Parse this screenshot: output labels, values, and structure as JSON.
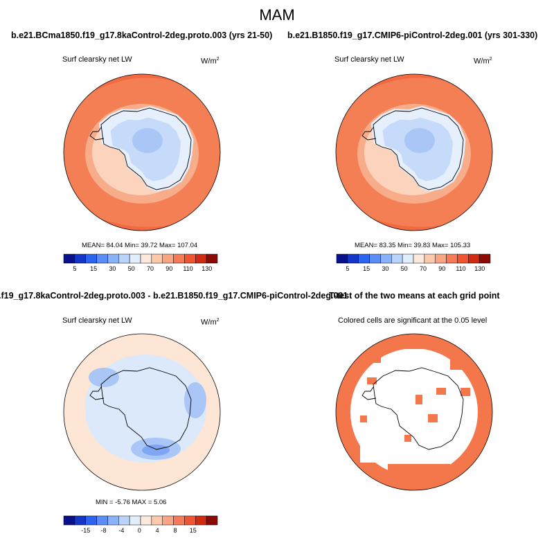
{
  "figure": {
    "title": "MAM"
  },
  "panels": [
    {
      "id": "p1",
      "title": "b.e21.BCma1850.f19_g17.8kaControl-2deg.proto.003 (yrs 21-50)",
      "subtitle": "Surf clearsky net LW",
      "units": "W/m",
      "units_sup": "2",
      "stats": "MEAN=  84.04  Min=  39.72  Max= 107.04"
    },
    {
      "id": "p2",
      "title": "b.e21.B1850.f19_g17.CMIP6-piControl-2deg.001 (yrs 301-330)",
      "subtitle": "Surf clearsky net LW",
      "units": "W/m",
      "units_sup": "2",
      "stats": "MEAN=  83.35  Min=  39.83  Max= 105.33"
    },
    {
      "id": "p3",
      "title": ".f19_g17.8kaControl-2deg.proto.003 - b.e21.B1850.f19_g17.CMIP6-piControl-2deg.001",
      "subtitle": "Surf clearsky net LW",
      "units": "W/m",
      "units_sup": "2",
      "stats": "MIN =  -5.76 MAX =   5.06"
    },
    {
      "id": "p4",
      "title": "T-test of the two means at each grid point",
      "subtitle": "Colored cells are significant at the 0.05 level"
    }
  ],
  "colorbars": {
    "absolute": {
      "colors": [
        "#08108a",
        "#1436c8",
        "#2b64f0",
        "#5a8ef5",
        "#8ab2f8",
        "#b9d3fa",
        "#e3eefc",
        "#fde8dc",
        "#fcc9ad",
        "#f9a483",
        "#f57a55",
        "#ef5530",
        "#cf2a12",
        "#8c0a05"
      ],
      "labels": [
        "5",
        "15",
        "30",
        "50",
        "70",
        "90",
        "110",
        "130"
      ]
    },
    "difference": {
      "colors": [
        "#08108a",
        "#1436c8",
        "#2b64f0",
        "#5a8ef5",
        "#8ab2f8",
        "#b9d3fa",
        "#e3eefc",
        "#fde8dc",
        "#fcc9ad",
        "#f9a483",
        "#f57a55",
        "#ef5530",
        "#cf2a12",
        "#8c0a05"
      ],
      "labels": [
        "-15",
        "-8",
        "-4",
        "0",
        "4",
        "8",
        "15"
      ]
    }
  },
  "map_colors": {
    "ocean_far": "#f26a40",
    "ocean_mid": "#f58a60",
    "ocean_near": "#f8ad8a",
    "ice_edge": "#fcd3bd",
    "coast": "#e6effc",
    "plateau": "#c6dbfa",
    "plateau_low": "#a9c6f6",
    "diff_warm": "#fde6d6",
    "diff_cool": "#dbe9fb",
    "diff_cooler": "#a9c6f6",
    "diff_coolest": "#7fa6f2",
    "ttest_sig": "#f4764b"
  }
}
